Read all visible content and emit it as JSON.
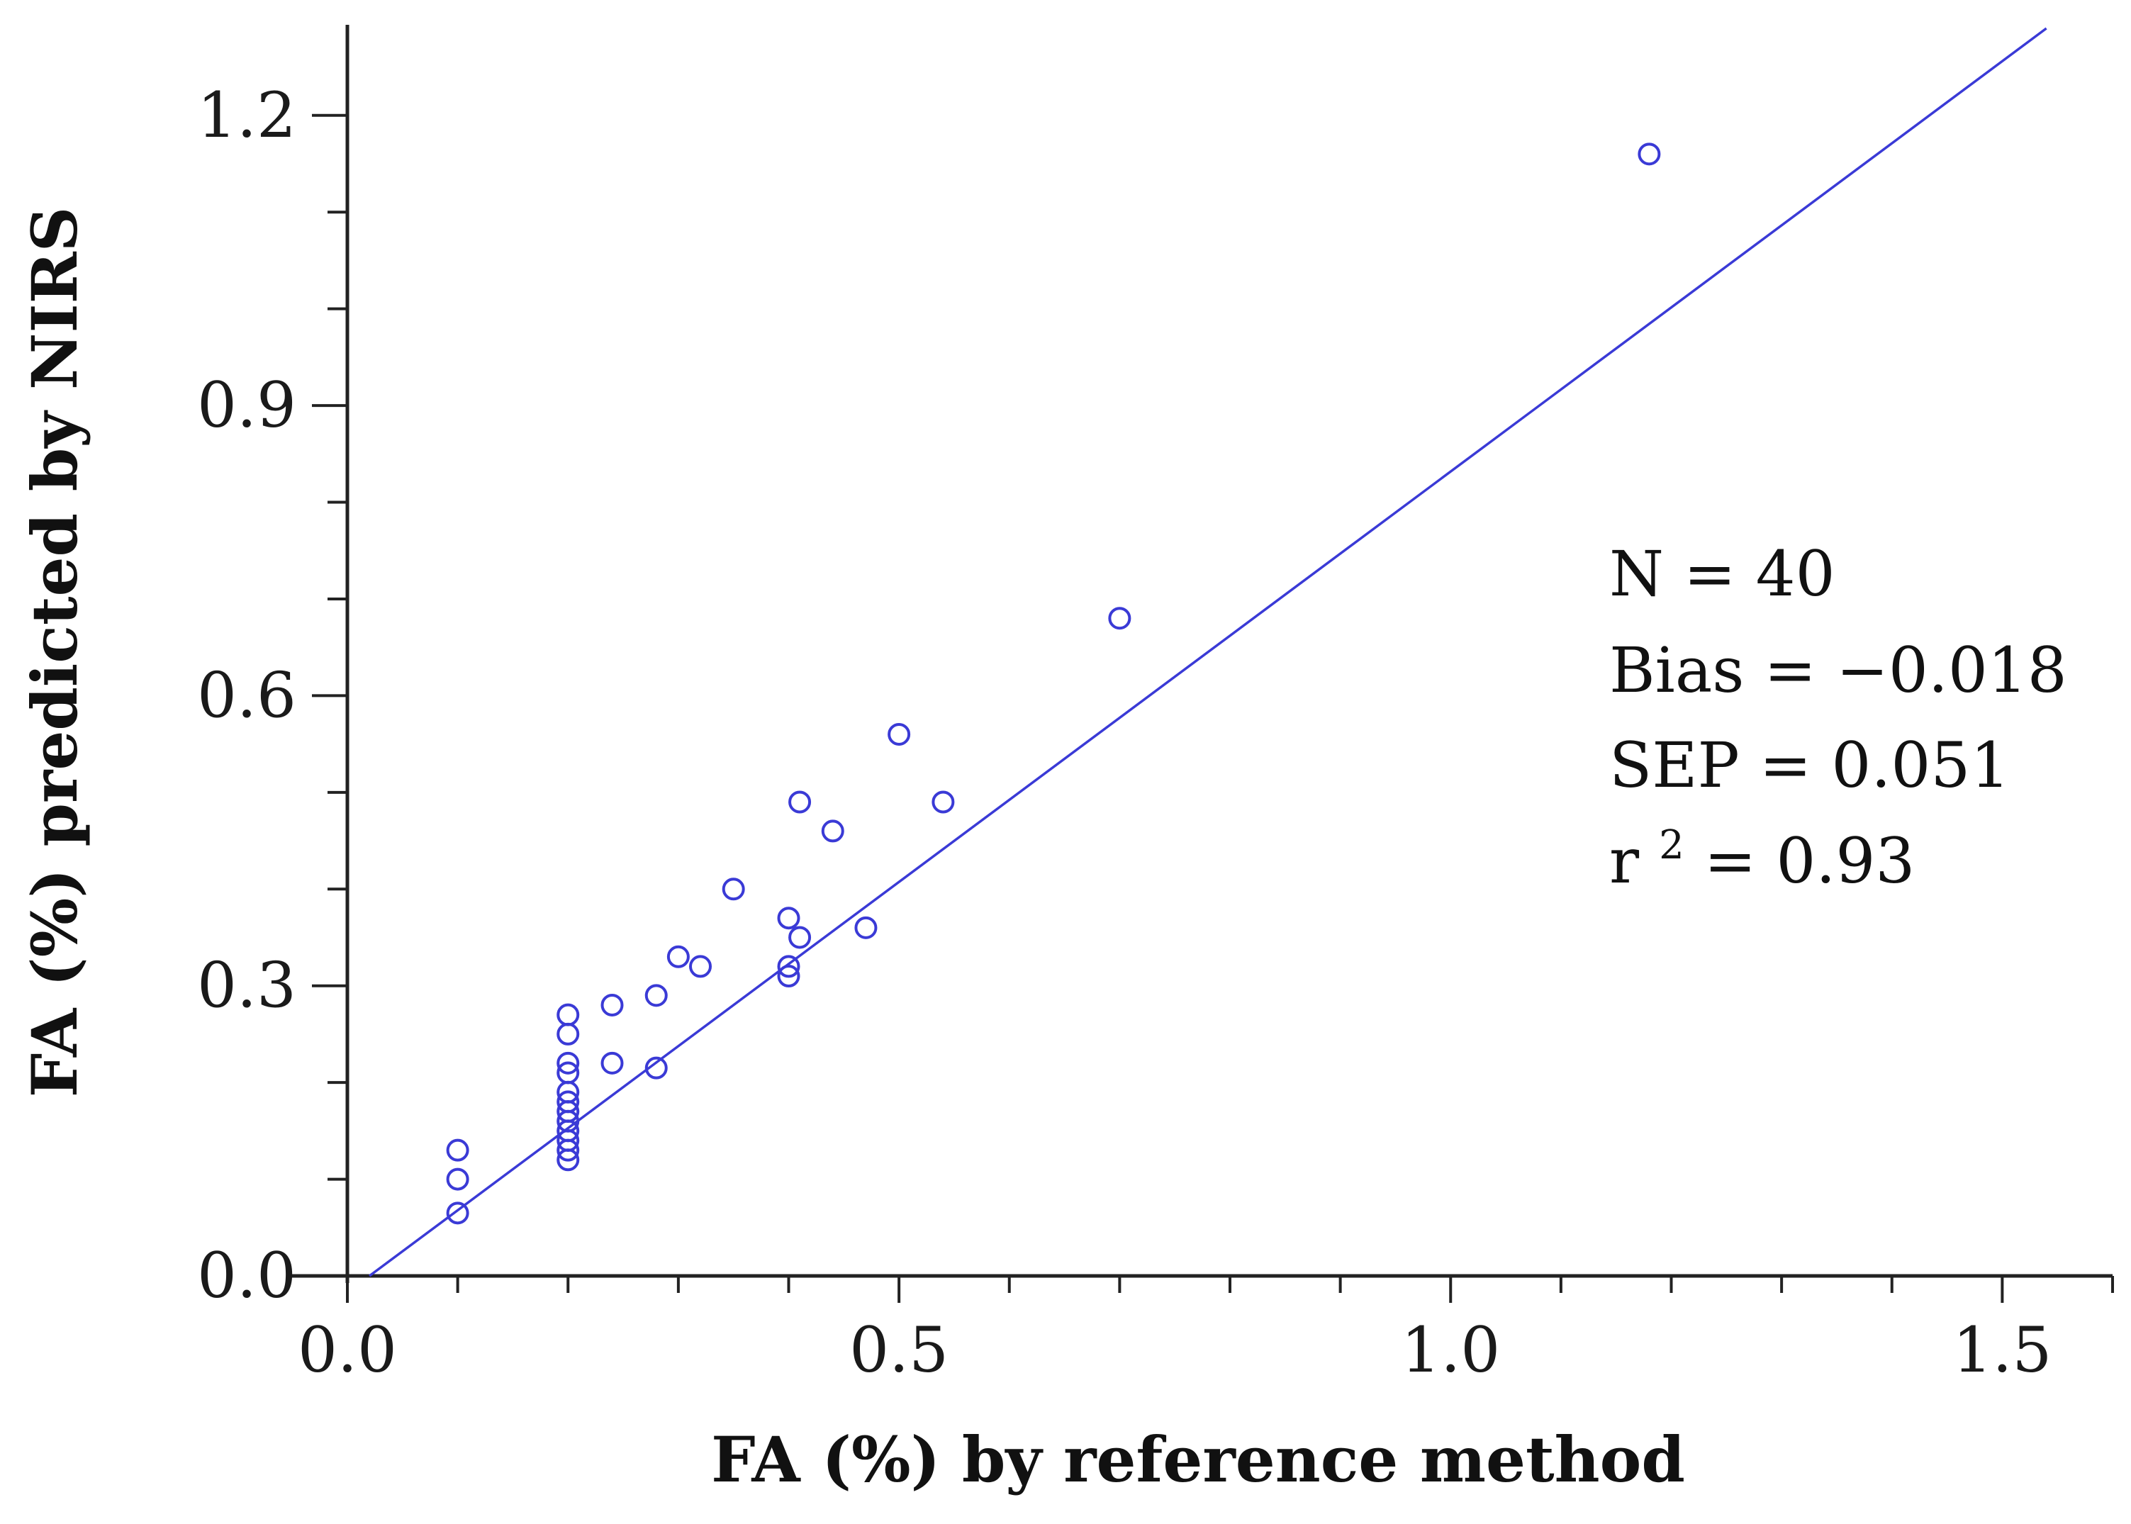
{
  "colors": {
    "series": "#3a3ad6",
    "axis": "#222222",
    "text": "#111111"
  },
  "chart_data": {
    "type": "scatter",
    "title": "",
    "xlabel": "FA (%) by reference method",
    "ylabel": "FA (%) predicted by NIRS",
    "xlim": [
      0.0,
      1.6
    ],
    "ylim": [
      0.0,
      1.29
    ],
    "x_ticks": [
      "0.0",
      "0.5",
      "1.0",
      "1.5"
    ],
    "x_tick_values": [
      0.0,
      0.5,
      1.0,
      1.5
    ],
    "x_minor_step": 0.1,
    "y_ticks": [
      "0.0",
      "0.3",
      "0.6",
      "0.9",
      "1.2"
    ],
    "y_tick_values": [
      0.0,
      0.3,
      0.6,
      0.9,
      1.2
    ],
    "y_minor_step": 0.1,
    "grid": false,
    "points": [
      {
        "x": 0.1,
        "y": 0.065
      },
      {
        "x": 0.1,
        "y": 0.1
      },
      {
        "x": 0.1,
        "y": 0.13
      },
      {
        "x": 0.2,
        "y": 0.12
      },
      {
        "x": 0.2,
        "y": 0.13
      },
      {
        "x": 0.2,
        "y": 0.14
      },
      {
        "x": 0.2,
        "y": 0.15
      },
      {
        "x": 0.2,
        "y": 0.16
      },
      {
        "x": 0.2,
        "y": 0.17
      },
      {
        "x": 0.2,
        "y": 0.18
      },
      {
        "x": 0.2,
        "y": 0.19
      },
      {
        "x": 0.2,
        "y": 0.21
      },
      {
        "x": 0.2,
        "y": 0.22
      },
      {
        "x": 0.2,
        "y": 0.25
      },
      {
        "x": 0.2,
        "y": 0.27
      },
      {
        "x": 0.24,
        "y": 0.22
      },
      {
        "x": 0.24,
        "y": 0.28
      },
      {
        "x": 0.28,
        "y": 0.215
      },
      {
        "x": 0.28,
        "y": 0.29
      },
      {
        "x": 0.3,
        "y": 0.33
      },
      {
        "x": 0.32,
        "y": 0.32
      },
      {
        "x": 0.35,
        "y": 0.4
      },
      {
        "x": 0.4,
        "y": 0.31
      },
      {
        "x": 0.4,
        "y": 0.32
      },
      {
        "x": 0.4,
        "y": 0.37
      },
      {
        "x": 0.41,
        "y": 0.35
      },
      {
        "x": 0.41,
        "y": 0.49
      },
      {
        "x": 0.44,
        "y": 0.46
      },
      {
        "x": 0.47,
        "y": 0.36
      },
      {
        "x": 0.5,
        "y": 0.56
      },
      {
        "x": 0.54,
        "y": 0.49
      },
      {
        "x": 0.7,
        "y": 0.68
      },
      {
        "x": 1.18,
        "y": 1.16
      }
    ],
    "fit_line": {
      "x": [
        0.02,
        1.54
      ],
      "y": [
        0.0,
        1.29
      ]
    },
    "annotations": {
      "n": "N = 40",
      "bias": "Bias = −0.018",
      "sep": "SEP = 0.051",
      "r2_base": "r",
      "r2_sup": "2",
      "r2_value": " = 0.93"
    },
    "annotation_position": "right"
  }
}
